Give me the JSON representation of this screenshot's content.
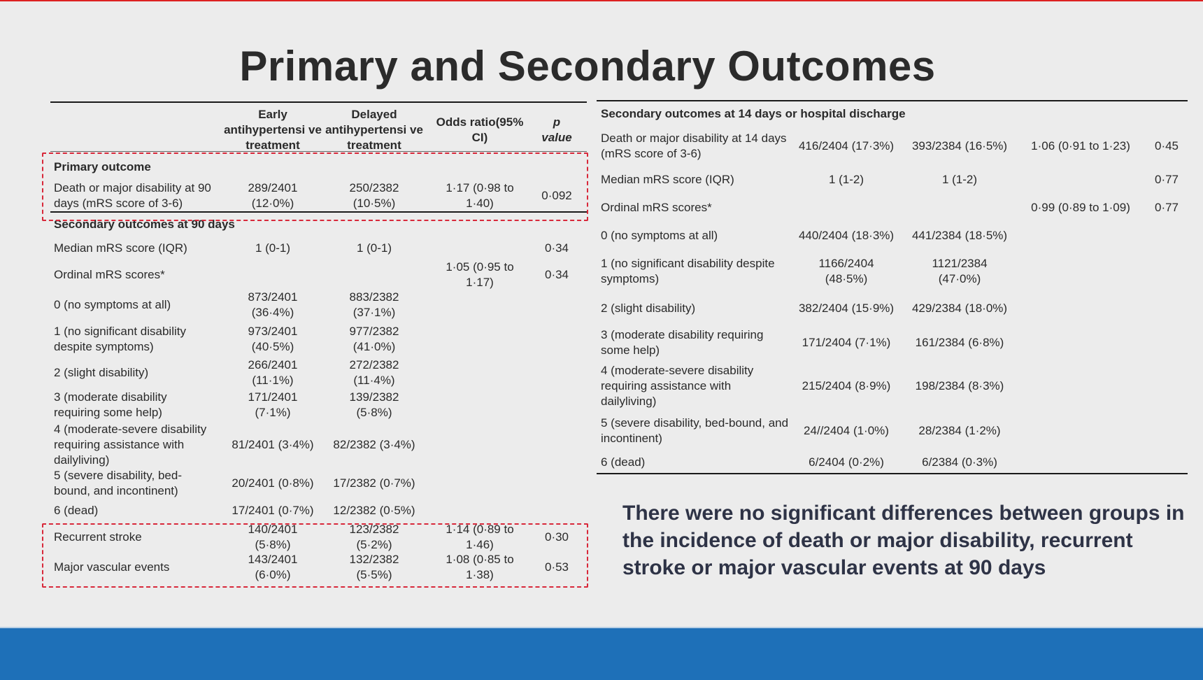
{
  "slide": {
    "title": "Primary and Secondary Outcomes",
    "note": "There were no significant differences between groups in the incidence of death or major disability, recurrent stroke or major vascular events at 90 days"
  },
  "left_table": {
    "headers": {
      "early": "Early antihypertensi ve treatment",
      "delayed": "Delayed antihypertensi ve treatment",
      "or": "Odds ratio(95% CI)",
      "p": "p value"
    },
    "primary_section": "Primary outcome",
    "primary_row": {
      "label": "Death or major disability at 90 days (mRS score of 3-6)",
      "early": "289/2401 (12·0%)",
      "delayed": "250/2382 (10·5%)",
      "or": "1·17 (0·98 to 1·40)",
      "p": "0·092"
    },
    "secondary_section": "Secondary outcomes at 90 days",
    "rows": [
      {
        "label": "Median mRS score (IQR)",
        "early": "1 (0-1)",
        "delayed": "1 (0-1)",
        "or": "",
        "p": "0·34"
      },
      {
        "label": "Ordinal mRS scores*",
        "early": "",
        "delayed": "",
        "or": "1·05 (0·95 to 1·17)",
        "p": "0·34"
      },
      {
        "label": "0 (no symptoms at all)",
        "early": "873/2401 (36·4%)",
        "delayed": "883/2382 (37·1%)",
        "or": "",
        "p": ""
      },
      {
        "label": "1 (no significant disability despite symptoms)",
        "early": "973/2401 (40·5%)",
        "delayed": "977/2382 (41·0%)",
        "or": "",
        "p": ""
      },
      {
        "label": "2 (slight disability)",
        "early": "266/2401 (11·1%)",
        "delayed": "272/2382 (11·4%)",
        "or": "",
        "p": ""
      },
      {
        "label": "3 (moderate disability requiring some help)",
        "early": "171/2401 (7·1%)",
        "delayed": "139/2382 (5·8%)",
        "or": "",
        "p": ""
      },
      {
        "label": "4 (moderate-severe disability requiring assistance with dailyliving)",
        "early": "81/2401 (3·4%)",
        "delayed": "82/2382 (3·4%)",
        "or": "",
        "p": ""
      },
      {
        "label": "5 (severe disability, bed-bound, and incontinent)",
        "early": "20/2401 (0·8%)",
        "delayed": "17/2382 (0·7%)",
        "or": "",
        "p": ""
      },
      {
        "label": "6 (dead)",
        "early": "17/2401 (0·7%)",
        "delayed": "12/2382 (0·5%)",
        "or": "",
        "p": ""
      },
      {
        "label": "Recurrent stroke",
        "early": "140/2401 (5·8%)",
        "delayed": "123/2382 (5·2%)",
        "or": "1·14 (0·89 to 1·46)",
        "p": "0·30"
      },
      {
        "label": "Major vascular events",
        "early": "143/2401 (6·0%)",
        "delayed": "132/2382 (5·5%)",
        "or": "1·08 (0·85 to 1·38)",
        "p": "0·53"
      }
    ]
  },
  "right_table": {
    "section": "Secondary outcomes at 14 days or hospital discharge",
    "rows": [
      {
        "label": "Death or major disability at 14 days (mRS score of 3-6)",
        "early": "416/2404 (17·3%)",
        "delayed": "393/2384 (16·5%)",
        "or": "1·06 (0·91 to 1·23)",
        "p": "0·45"
      },
      {
        "label": "Median mRS score (IQR)",
        "early": "1 (1-2)",
        "delayed": "1 (1-2)",
        "or": "",
        "p": "0·77"
      },
      {
        "label": "Ordinal mRS scores*",
        "early": "",
        "delayed": "",
        "or": "0·99 (0·89 to 1·09)",
        "p": "0·77"
      },
      {
        "label": "0 (no symptoms at all)",
        "early": "440/2404 (18·3%)",
        "delayed": "441/2384 (18·5%)",
        "or": "",
        "p": ""
      },
      {
        "label": "1 (no significant disability despite symptoms)",
        "early": "1166/2404 (48·5%)",
        "delayed": "1121/2384 (47·0%)",
        "or": "",
        "p": ""
      },
      {
        "label": "2 (slight disability)",
        "early": "382/2404 (15·9%)",
        "delayed": "429/2384 (18·0%)",
        "or": "",
        "p": ""
      },
      {
        "label": "3 (moderate disability requiring some help)",
        "early": "171/2404 (7·1%)",
        "delayed": "161/2384 (6·8%)",
        "or": "",
        "p": ""
      },
      {
        "label": "4 (moderate-severe disability requiring assistance with dailyliving)",
        "early": "215/2404 (8·9%)",
        "delayed": "198/2384 (8·3%)",
        "or": "",
        "p": ""
      },
      {
        "label": "5 (severe disability, bed-bound, and incontinent)",
        "early": "24//2404 (1·0%)",
        "delayed": "28/2384 (1·2%)",
        "or": "",
        "p": ""
      },
      {
        "label": "6 (dead)",
        "early": "6/2404 (0·2%)",
        "delayed": "6/2384 (0·3%)",
        "or": "",
        "p": ""
      }
    ]
  },
  "colors": {
    "background": "#ececec",
    "highlight_dash": "#d8283a",
    "bottom_bar": "#1e70b8",
    "note_text": "#2e3346"
  }
}
